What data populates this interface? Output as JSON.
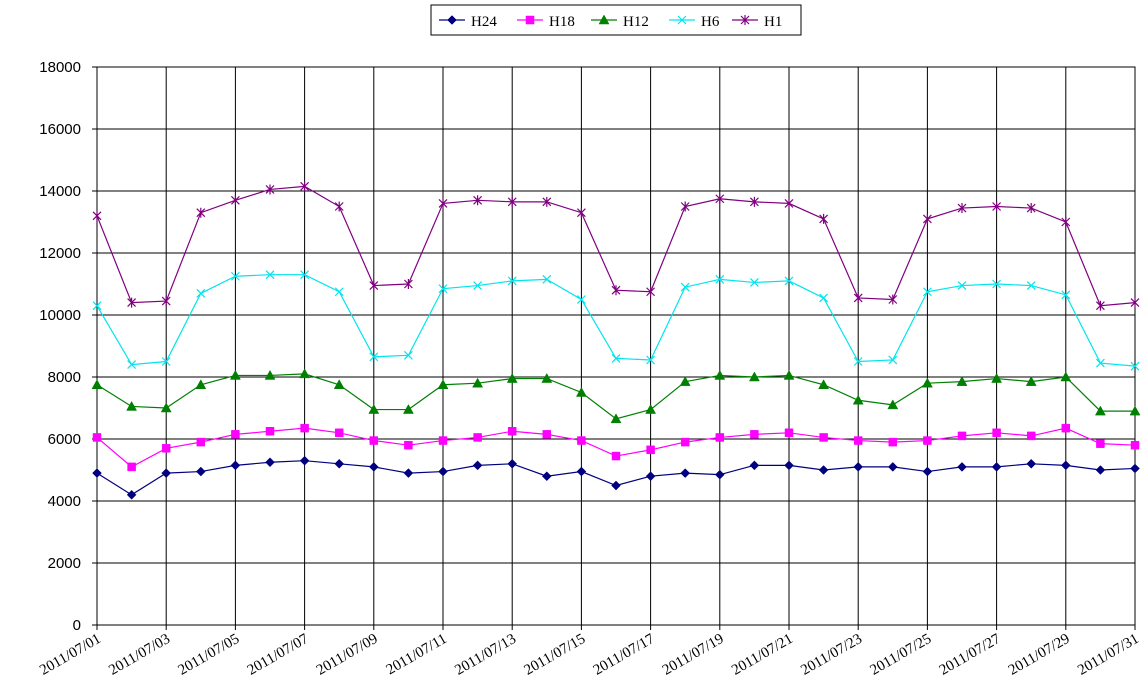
{
  "chart_data": {
    "type": "line",
    "categories": [
      "2011/07/01",
      null,
      "2011/07/03",
      null,
      "2011/07/05",
      null,
      "2011/07/07",
      null,
      "2011/07/09",
      null,
      "2011/07/11",
      null,
      "2011/07/13",
      null,
      "2011/07/15",
      null,
      "2011/07/17",
      null,
      "2011/07/19",
      null,
      "2011/07/21",
      null,
      "2011/07/23",
      null,
      "2011/07/25",
      null,
      "2011/07/27",
      null,
      "2011/07/29",
      null,
      "2011/07/31"
    ],
    "series": [
      {
        "name": "H24",
        "color": "#000080",
        "marker": "diamond",
        "values": [
          4900,
          4200,
          4900,
          4950,
          5150,
          5250,
          5300,
          5200,
          5100,
          4900,
          4950,
          5150,
          5200,
          4800,
          4950,
          4500,
          4800,
          4900,
          4850,
          5150,
          5150,
          5000,
          5100,
          5100,
          4950,
          5100,
          5100,
          5200,
          5150,
          5000,
          5050
        ]
      },
      {
        "name": "H18",
        "color": "#ff00ff",
        "marker": "square",
        "values": [
          6050,
          5100,
          5700,
          5900,
          6150,
          6250,
          6350,
          6200,
          5950,
          5800,
          5950,
          6050,
          6250,
          6150,
          5950,
          5450,
          5650,
          5900,
          6050,
          6150,
          6200,
          6050,
          5950,
          5900,
          5950,
          6100,
          6200,
          6100,
          6350,
          5850,
          5800
        ]
      },
      {
        "name": "H12",
        "color": "#008000",
        "marker": "triangle",
        "values": [
          7750,
          7050,
          7000,
          7750,
          8050,
          8050,
          8100,
          7750,
          6950,
          6950,
          7750,
          7800,
          7950,
          7950,
          7500,
          6650,
          6950,
          7850,
          8050,
          8000,
          8050,
          7750,
          7250,
          7100,
          7800,
          7850,
          7950,
          7850,
          8000,
          6900,
          6900
        ]
      },
      {
        "name": "H6",
        "color": "#00e5ee",
        "marker": "x",
        "values": [
          10300,
          8400,
          8500,
          10700,
          11250,
          11300,
          11300,
          10750,
          8650,
          8700,
          10850,
          10950,
          11100,
          11150,
          10500,
          8600,
          8550,
          10900,
          11150,
          11050,
          11100,
          10550,
          8500,
          8550,
          10750,
          10950,
          11000,
          10950,
          10650,
          8450,
          8350
        ]
      },
      {
        "name": "H1",
        "color": "#800080",
        "marker": "star",
        "values": [
          13200,
          10400,
          10450,
          13300,
          13700,
          14050,
          14150,
          13500,
          10950,
          11000,
          13600,
          13700,
          13650,
          13650,
          13300,
          10800,
          10750,
          13500,
          13750,
          13650,
          13600,
          13100,
          10550,
          10500,
          13100,
          13450,
          13500,
          13450,
          13000,
          10300,
          10400
        ]
      }
    ],
    "ylim": [
      0,
      18000
    ],
    "yticks": [
      0,
      2000,
      4000,
      6000,
      8000,
      10000,
      12000,
      14000,
      16000,
      18000
    ],
    "grid": true,
    "legend": "top"
  }
}
